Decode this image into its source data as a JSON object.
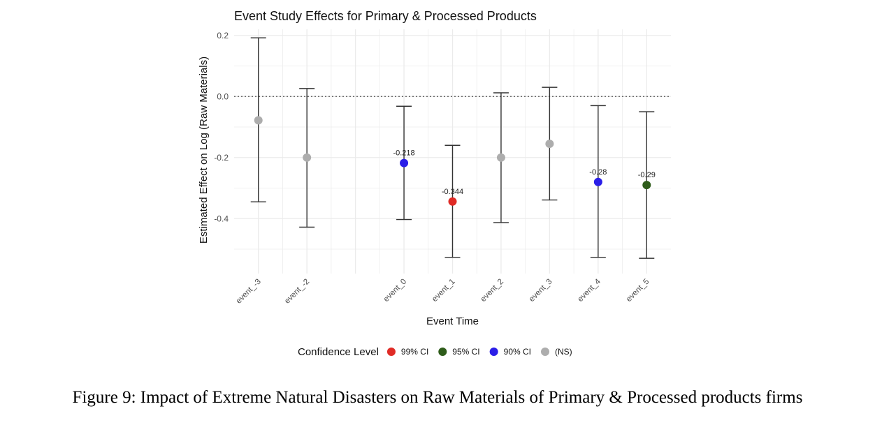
{
  "chart_data": {
    "type": "scatter",
    "title": "Event Study Effects for Primary & Processed Products",
    "xlabel": "Event Time",
    "ylabel": "Estimated Effect on Log (Raw Materials)",
    "ylim": [
      -0.58,
      0.22
    ],
    "y_ticks": [
      0.2,
      0.0,
      -0.2,
      -0.4
    ],
    "y_tick_labels": [
      "0.2",
      "0.0",
      "-0.2",
      "-0.4"
    ],
    "x_positions": [
      -3,
      -2,
      -1,
      0,
      1,
      2,
      3,
      4,
      5
    ],
    "x_range": [
      -3.5,
      5.5
    ],
    "reference_line": 0.0,
    "grid": true,
    "points": [
      {
        "event": "event_-3",
        "x": -3,
        "estimate": -0.078,
        "ci_low": -0.345,
        "ci_high": 0.192,
        "level": "ns",
        "label": ""
      },
      {
        "event": "event_-2",
        "x": -2,
        "estimate": -0.2,
        "ci_low": -0.428,
        "ci_high": 0.026,
        "level": "ns",
        "label": ""
      },
      {
        "event": "event_0",
        "x": 0,
        "estimate": -0.218,
        "ci_low": -0.403,
        "ci_high": -0.032,
        "level": "ci90",
        "label": "-0.218"
      },
      {
        "event": "event_1",
        "x": 1,
        "estimate": -0.344,
        "ci_low": -0.527,
        "ci_high": -0.16,
        "level": "ci99",
        "label": "-0.344"
      },
      {
        "event": "event_2",
        "x": 2,
        "estimate": -0.2,
        "ci_low": -0.413,
        "ci_high": 0.012,
        "level": "ns",
        "label": ""
      },
      {
        "event": "event_3",
        "x": 3,
        "estimate": -0.155,
        "ci_low": -0.339,
        "ci_high": 0.03,
        "level": "ns",
        "label": ""
      },
      {
        "event": "event_4",
        "x": 4,
        "estimate": -0.28,
        "ci_low": -0.527,
        "ci_high": -0.03,
        "level": "ci90",
        "label": "-0.28"
      },
      {
        "event": "event_5",
        "x": 5,
        "estimate": -0.29,
        "ci_low": -0.53,
        "ci_high": -0.05,
        "level": "ci95",
        "label": "-0.29"
      }
    ],
    "legend": {
      "title": "Confidence Level",
      "position": "bottom",
      "entries": [
        {
          "key": "ci99",
          "label": "99% CI",
          "color": "#e02b26"
        },
        {
          "key": "ci95",
          "label": "95% CI",
          "color": "#2e5c1a"
        },
        {
          "key": "ci90",
          "label": "90% CI",
          "color": "#2a1ee8"
        },
        {
          "key": "ns",
          "label": "(NS)",
          "color": "#adadad"
        }
      ]
    }
  },
  "caption": "Figure 9: Impact of Extreme Natural Disasters on Raw Materials of Primary & Processed products firms"
}
